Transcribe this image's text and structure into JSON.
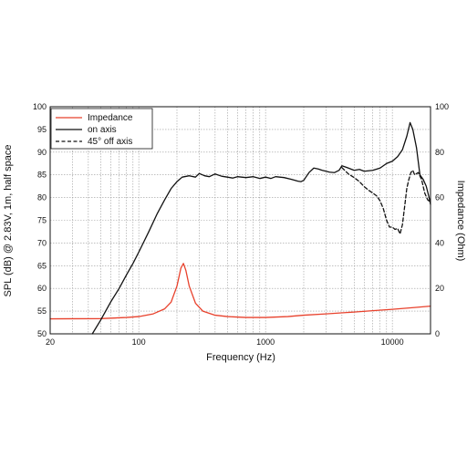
{
  "chart_data": {
    "type": "line",
    "xlabel": "Frequency (Hz)",
    "ylabel_left": "SPL (dB) @ 2.83V, 1m, half space",
    "ylabel_right": "Impedance (Ohm)",
    "x_scale": "log",
    "xlim": [
      20,
      20000
    ],
    "ylim_left": [
      50,
      100
    ],
    "ylim_right": [
      0,
      100
    ],
    "grid": true,
    "legend_position": "top-left",
    "x_ticks": [
      {
        "value": 20,
        "label": "20"
      },
      {
        "value": 100,
        "label": "100"
      },
      {
        "value": 1000,
        "label": "1000"
      },
      {
        "value": 10000,
        "label": "10000"
      }
    ],
    "y_ticks_left": [
      50,
      55,
      60,
      65,
      70,
      75,
      80,
      85,
      90,
      95,
      100
    ],
    "y_ticks_right": [
      0,
      20,
      40,
      60,
      80,
      100
    ],
    "series": [
      {
        "name": "Impedance",
        "axis": "right",
        "color": "#e8412c",
        "style": "solid",
        "points": [
          [
            20,
            6.6
          ],
          [
            50,
            6.7
          ],
          [
            80,
            7.2
          ],
          [
            100,
            7.6
          ],
          [
            130,
            8.8
          ],
          [
            160,
            11
          ],
          [
            180,
            14
          ],
          [
            200,
            21
          ],
          [
            215,
            29
          ],
          [
            225,
            31
          ],
          [
            235,
            28
          ],
          [
            250,
            21
          ],
          [
            280,
            13.5
          ],
          [
            320,
            10
          ],
          [
            400,
            8.2
          ],
          [
            500,
            7.6
          ],
          [
            700,
            7.2
          ],
          [
            1000,
            7.2
          ],
          [
            1500,
            7.6
          ],
          [
            2000,
            8.2
          ],
          [
            3000,
            8.8
          ],
          [
            5000,
            9.6
          ],
          [
            7000,
            10.2
          ],
          [
            10000,
            10.8
          ],
          [
            15000,
            11.6
          ],
          [
            20000,
            12.2
          ]
        ]
      },
      {
        "name": "on axis",
        "axis": "left",
        "color": "#111111",
        "style": "solid",
        "points": [
          [
            43,
            50
          ],
          [
            50,
            53
          ],
          [
            60,
            57
          ],
          [
            70,
            60
          ],
          [
            80,
            63
          ],
          [
            90,
            65.5
          ],
          [
            100,
            68
          ],
          [
            120,
            72.5
          ],
          [
            140,
            76.5
          ],
          [
            160,
            79.5
          ],
          [
            180,
            82
          ],
          [
            200,
            83.5
          ],
          [
            220,
            84.5
          ],
          [
            250,
            84.8
          ],
          [
            280,
            84.5
          ],
          [
            300,
            85.3
          ],
          [
            330,
            84.8
          ],
          [
            360,
            84.6
          ],
          [
            400,
            85.2
          ],
          [
            450,
            84.7
          ],
          [
            500,
            84.5
          ],
          [
            550,
            84.3
          ],
          [
            600,
            84.6
          ],
          [
            700,
            84.4
          ],
          [
            800,
            84.6
          ],
          [
            900,
            84.2
          ],
          [
            1000,
            84.5
          ],
          [
            1100,
            84.2
          ],
          [
            1200,
            84.6
          ],
          [
            1400,
            84.4
          ],
          [
            1600,
            84
          ],
          [
            1800,
            83.6
          ],
          [
            1900,
            83.5
          ],
          [
            2000,
            83.8
          ],
          [
            2200,
            85.5
          ],
          [
            2400,
            86.5
          ],
          [
            2600,
            86.3
          ],
          [
            2800,
            86
          ],
          [
            3000,
            85.8
          ],
          [
            3200,
            85.6
          ],
          [
            3500,
            85.5
          ],
          [
            3800,
            86
          ],
          [
            4000,
            87
          ],
          [
            4200,
            86.8
          ],
          [
            4500,
            86.5
          ],
          [
            5000,
            86
          ],
          [
            5500,
            86.2
          ],
          [
            6000,
            85.8
          ],
          [
            7000,
            86
          ],
          [
            8000,
            86.5
          ],
          [
            9000,
            87.5
          ],
          [
            10000,
            88
          ],
          [
            11000,
            89
          ],
          [
            12000,
            90.5
          ],
          [
            13000,
            93.5
          ],
          [
            13800,
            96.5
          ],
          [
            14500,
            95
          ],
          [
            15500,
            91
          ],
          [
            16500,
            85
          ],
          [
            17500,
            84
          ],
          [
            18500,
            82.5
          ],
          [
            19500,
            80
          ],
          [
            20000,
            78.5
          ]
        ]
      },
      {
        "name": "45° off axis",
        "axis": "left",
        "color": "#111111",
        "style": "dashed",
        "points": [
          [
            4000,
            86.6
          ],
          [
            4500,
            85.2
          ],
          [
            5000,
            84.4
          ],
          [
            5500,
            83.5
          ],
          [
            6000,
            82.4
          ],
          [
            6500,
            81.6
          ],
          [
            7000,
            81
          ],
          [
            7500,
            80.4
          ],
          [
            8000,
            79.3
          ],
          [
            8500,
            77.5
          ],
          [
            9000,
            75
          ],
          [
            9500,
            73.5
          ],
          [
            10000,
            73.5
          ],
          [
            10500,
            73
          ],
          [
            11000,
            73.2
          ],
          [
            11500,
            72
          ],
          [
            12000,
            74
          ],
          [
            12500,
            78
          ],
          [
            13000,
            82
          ],
          [
            13500,
            84
          ],
          [
            14000,
            85.5
          ],
          [
            14500,
            86
          ],
          [
            15000,
            85
          ],
          [
            16000,
            85.5
          ],
          [
            17000,
            84
          ],
          [
            18000,
            81
          ],
          [
            19000,
            79.5
          ],
          [
            20000,
            79
          ]
        ]
      }
    ]
  }
}
